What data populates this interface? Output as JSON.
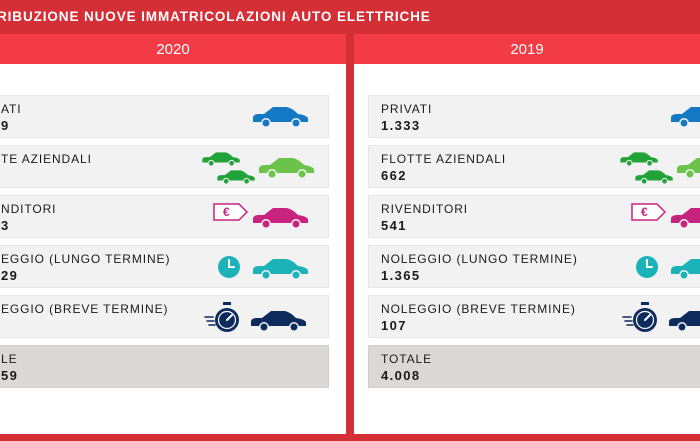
{
  "title": "RIBUZIONE NUOVE IMMATRICOLAZIONI AUTO ELETTRICHE",
  "colors": {
    "privati": "#1479c4",
    "flotte": "#22a33a",
    "flotte_light": "#6cc34a",
    "rivenditori": "#c8237f",
    "noleggio_lungo": "#1bb3b8",
    "noleggio_breve": "#0e2b5e",
    "header_red": "#f23b45",
    "frame_red": "#d42e36"
  },
  "years": [
    {
      "year": "2020",
      "rows": [
        {
          "label": "ATI",
          "value": "9",
          "icon": "car-icon"
        },
        {
          "label": "TE AZIENDALI",
          "value": "",
          "icon": "fleet-cars-icon"
        },
        {
          "label": "NDITORI",
          "value": "3",
          "icon": "euro-tag-car-icon"
        },
        {
          "label": "EGGIO (LUNGO TERMINE)",
          "value": "29",
          "icon": "clock-car-icon"
        },
        {
          "label": "EGGIO (BREVE TERMINE)",
          "value": "",
          "icon": "stopwatch-car-icon"
        },
        {
          "label": "LE",
          "value": "59",
          "icon": ""
        }
      ]
    },
    {
      "year": "2019",
      "rows": [
        {
          "label": "PRIVATI",
          "value": "1.333",
          "icon": "car-icon"
        },
        {
          "label": "FLOTTE AZIENDALI",
          "value": "662",
          "icon": "fleet-cars-icon"
        },
        {
          "label": "RIVENDITORI",
          "value": "541",
          "icon": "euro-tag-car-icon"
        },
        {
          "label": "NOLEGGIO (LUNGO TERMINE)",
          "value": "1.365",
          "icon": "clock-car-icon"
        },
        {
          "label": "NOLEGGIO (BREVE TERMINE)",
          "value": "107",
          "icon": "stopwatch-car-icon"
        },
        {
          "label": "TOTALE",
          "value": "4.008",
          "icon": ""
        }
      ]
    }
  ],
  "tag_symbol": "€"
}
